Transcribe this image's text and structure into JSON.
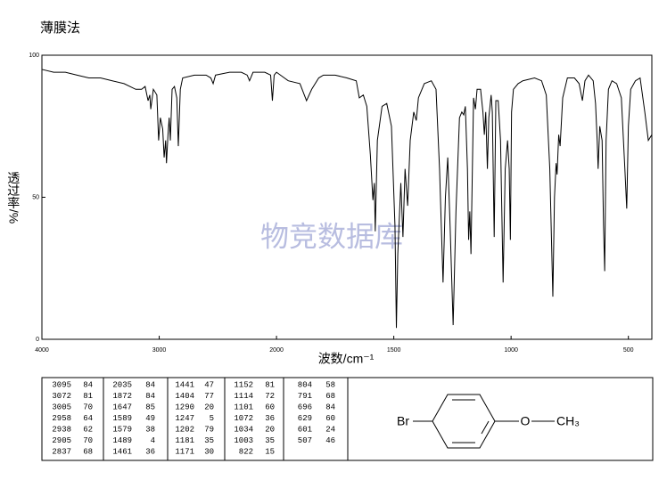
{
  "chart_data": {
    "type": "line",
    "title": "薄膜法",
    "x_label": "波数/cm⁻¹",
    "y_label": "透过率/%",
    "watermark": "物竞数据库",
    "xlim": [
      4000,
      400
    ],
    "x_scale_break": 2000,
    "ylim": [
      0,
      100
    ],
    "xticks": [
      4000,
      3000,
      2000,
      1500,
      1000,
      500
    ],
    "yticks": [
      0,
      50,
      100
    ],
    "color": "#000000",
    "x": [
      4000,
      3900,
      3800,
      3700,
      3600,
      3500,
      3400,
      3300,
      3200,
      3150,
      3120,
      3095,
      3080,
      3072,
      3050,
      3020,
      3005,
      2990,
      2970,
      2958,
      2945,
      2938,
      2925,
      2915,
      2905,
      2890,
      2870,
      2850,
      2837,
      2820,
      2800,
      2700,
      2600,
      2560,
      2540,
      2520,
      2400,
      2300,
      2250,
      2230,
      2200,
      2100,
      2050,
      2035,
      2020,
      2000,
      1950,
      1900,
      1872,
      1850,
      1820,
      1800,
      1750,
      1700,
      1660,
      1647,
      1630,
      1615,
      1600,
      1589,
      1583,
      1579,
      1570,
      1550,
      1530,
      1510,
      1495,
      1489,
      1483,
      1470,
      1461,
      1452,
      1441,
      1430,
      1415,
      1404,
      1395,
      1370,
      1340,
      1320,
      1305,
      1290,
      1280,
      1270,
      1260,
      1247,
      1235,
      1220,
      1210,
      1202,
      1195,
      1186,
      1181,
      1176,
      1171,
      1165,
      1160,
      1152,
      1145,
      1130,
      1120,
      1114,
      1108,
      1101,
      1095,
      1085,
      1080,
      1072,
      1065,
      1055,
      1045,
      1034,
      1025,
      1015,
      1008,
      1003,
      998,
      990,
      970,
      950,
      900,
      870,
      850,
      835,
      822,
      815,
      808,
      804,
      797,
      791,
      780,
      760,
      730,
      710,
      696,
      685,
      670,
      650,
      640,
      633,
      629,
      622,
      612,
      606,
      601,
      595,
      585,
      570,
      550,
      530,
      515,
      507,
      500,
      490,
      470,
      450,
      430,
      415,
      400
    ],
    "values": [
      95,
      94,
      94,
      93,
      92,
      92,
      91,
      90,
      88,
      88,
      89,
      84,
      86,
      81,
      88,
      86,
      70,
      78,
      74,
      64,
      70,
      62,
      72,
      78,
      70,
      88,
      89,
      85,
      68,
      88,
      92,
      93,
      93,
      92,
      90,
      93,
      94,
      94,
      93,
      91,
      94,
      94,
      93,
      84,
      93,
      94,
      91,
      90,
      84,
      88,
      92,
      93,
      93,
      92,
      91,
      85,
      86,
      82,
      65,
      49,
      55,
      38,
      70,
      82,
      83,
      75,
      40,
      4,
      30,
      55,
      36,
      60,
      47,
      70,
      80,
      77,
      85,
      90,
      91,
      88,
      60,
      20,
      50,
      64,
      40,
      5,
      45,
      78,
      80,
      79,
      82,
      60,
      35,
      45,
      30,
      60,
      85,
      81,
      88,
      88,
      80,
      72,
      80,
      60,
      78,
      86,
      80,
      36,
      84,
      84,
      70,
      20,
      60,
      70,
      60,
      35,
      80,
      88,
      90,
      91,
      92,
      91,
      86,
      60,
      15,
      50,
      62,
      58,
      72,
      68,
      85,
      92,
      92,
      90,
      84,
      91,
      93,
      91,
      83,
      70,
      60,
      75,
      70,
      40,
      24,
      70,
      88,
      91,
      90,
      85,
      60,
      46,
      75,
      88,
      91,
      92,
      80,
      70,
      72
    ]
  },
  "peak_table": [
    [
      [
        3095,
        84
      ],
      [
        3072,
        81
      ],
      [
        3005,
        70
      ],
      [
        2958,
        64
      ],
      [
        2938,
        62
      ],
      [
        2905,
        70
      ],
      [
        2837,
        68
      ]
    ],
    [
      [
        2035,
        84
      ],
      [
        1872,
        84
      ],
      [
        1647,
        85
      ],
      [
        1589,
        49
      ],
      [
        1579,
        38
      ],
      [
        1489,
        4
      ],
      [
        1461,
        36
      ]
    ],
    [
      [
        1441,
        47
      ],
      [
        1404,
        77
      ],
      [
        1290,
        20
      ],
      [
        1247,
        5
      ],
      [
        1202,
        79
      ],
      [
        1181,
        35
      ],
      [
        1171,
        30
      ]
    ],
    [
      [
        1152,
        81
      ],
      [
        1114,
        72
      ],
      [
        1101,
        60
      ],
      [
        1072,
        36
      ],
      [
        1034,
        20
      ],
      [
        1003,
        35
      ],
      [
        822,
        15
      ]
    ],
    [
      [
        804,
        58
      ],
      [
        791,
        68
      ],
      [
        696,
        84
      ],
      [
        629,
        60
      ],
      [
        601,
        24
      ],
      [
        507,
        46
      ]
    ]
  ],
  "structure": {
    "substituent_left": "Br",
    "oxygen": "O",
    "methyl": "CH₃"
  }
}
